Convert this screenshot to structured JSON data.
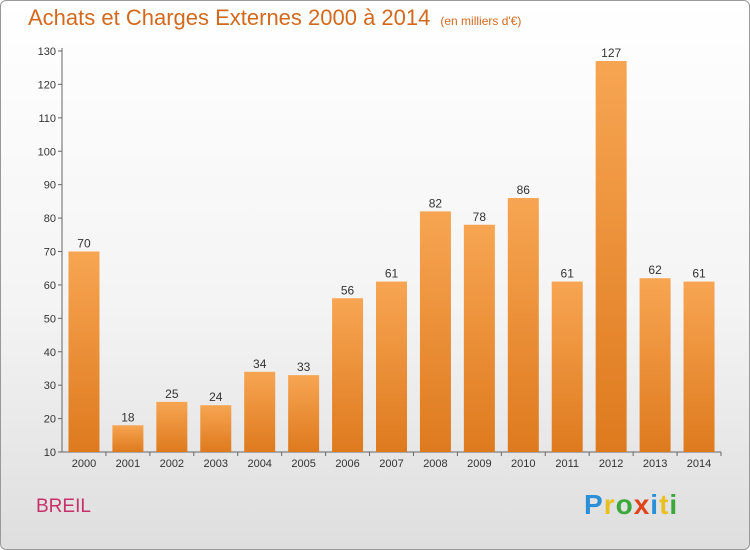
{
  "title": "Achats et Charges Externes 2000 à 2014",
  "unit": "(en milliers d'€)",
  "place": "BREIL",
  "logo": {
    "text": "Proxiti",
    "colors": [
      "#2a8fd6",
      "#e8c020",
      "#3aa83a",
      "#e0441c",
      "#2a8fd6",
      "#e8c020",
      "#3aa83a"
    ]
  },
  "colors": {
    "title": "#d2691e",
    "bar_top": "#f7a552",
    "bar_bottom": "#de7a1e",
    "place": "#c8306a"
  },
  "chart_data": {
    "type": "bar",
    "title": "Achats et Charges Externes 2000 à 2014",
    "subtitle": "(en milliers d'€)",
    "xlabel": "",
    "ylabel": "",
    "categories": [
      "2000",
      "2001",
      "2002",
      "2003",
      "2004",
      "2005",
      "2006",
      "2007",
      "2008",
      "2009",
      "2010",
      "2011",
      "2012",
      "2013",
      "2014"
    ],
    "values": [
      70,
      18,
      25,
      24,
      34,
      33,
      56,
      61,
      82,
      78,
      86,
      61,
      127,
      62,
      61
    ],
    "ylim": [
      10,
      130
    ],
    "yticks": [
      10,
      20,
      30,
      40,
      50,
      60,
      70,
      80,
      90,
      100,
      110,
      120,
      130
    ],
    "grid": false,
    "legend": "none"
  }
}
